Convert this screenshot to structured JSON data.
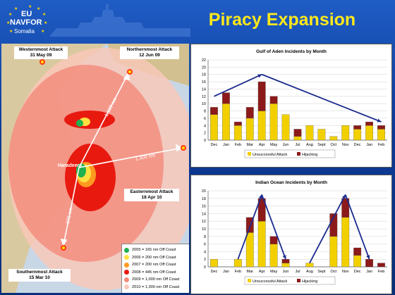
{
  "logo": {
    "line1": "EU",
    "line2": "NAVFOR",
    "line3": "Somalia"
  },
  "slide_title": "Piracy Expansion",
  "map": {
    "attacks": [
      {
        "name": "Westernmost Attack",
        "date": "31 May 09"
      },
      {
        "name": "Northernmost Attack",
        "date": "12 Jun 09"
      },
      {
        "name": "Easternmost Attack",
        "date": "18 Apr 10"
      },
      {
        "name": "Southernmost Attack",
        "date": "15 Mar 10"
      }
    ],
    "base": "Haradeere",
    "distances": [
      "1,100 nm",
      "1,300 nm",
      "975 nm"
    ],
    "legend": [
      {
        "label": "2005 = 165 nm Off Coast",
        "color": "#20b050"
      },
      {
        "label": "2006 = 200 nm Off Coast",
        "color": "#ffe040"
      },
      {
        "label": "2007 = 200 nm Off Coast",
        "color": "#ff9a20"
      },
      {
        "label": "2008 = 445 nm Off Coast",
        "color": "#e81a10"
      },
      {
        "label": "2009 = 1,000 nm Off Coast",
        "color": "#f48a7a"
      },
      {
        "label": "2010 = 1,300 nm Off Coast",
        "color": "#f8c8b8"
      }
    ]
  },
  "chart_data": [
    {
      "type": "bar",
      "title": "Gulf of Aden Incidents by Month",
      "categories": [
        "Dec",
        "Jan",
        "Feb",
        "Mar",
        "Apr",
        "May",
        "Jun",
        "Jul",
        "Aug",
        "Sept",
        "Oct",
        "Nov",
        "Dec",
        "Jan",
        "Feb"
      ],
      "series": [
        {
          "name": "Unsuccessful Attack",
          "color": "#f2d000",
          "values": [
            7,
            10,
            4,
            6,
            8,
            10,
            7,
            1,
            4,
            3,
            1,
            4,
            3,
            4,
            3
          ]
        },
        {
          "name": "Hijacking",
          "color": "#8c1a1a",
          "values": [
            2,
            3,
            1,
            3,
            8,
            2,
            0,
            2,
            0,
            0,
            0,
            0,
            1,
            1,
            1
          ]
        }
      ],
      "ylim": [
        0,
        22
      ],
      "yticks": [
        0,
        2,
        4,
        6,
        8,
        10,
        12,
        14,
        16,
        18,
        20,
        22
      ],
      "stacked": true,
      "legend": "bottom"
    },
    {
      "type": "bar",
      "title": "Indian Ocean Incidents by Month",
      "categories": [
        "Dec",
        "Jan",
        "Feb",
        "Mar",
        "Apr",
        "May",
        "Jun",
        "Jul",
        "Aug",
        "Sept",
        "Oct",
        "Nov",
        "Dec",
        "Jan",
        "Feb"
      ],
      "series": [
        {
          "name": "Unsuccessful Attack",
          "color": "#f2d000",
          "values": [
            2,
            0,
            2,
            9,
            12,
            6,
            1,
            0,
            1,
            0,
            8,
            13,
            3,
            0,
            0
          ]
        },
        {
          "name": "Hijacking",
          "color": "#8c1a1a",
          "values": [
            0,
            0,
            0,
            4,
            6,
            2,
            1,
            0,
            0,
            0,
            6,
            5,
            2,
            2,
            1
          ]
        }
      ],
      "ylim": [
        0,
        20
      ],
      "yticks": [
        0,
        2,
        4,
        6,
        8,
        10,
        12,
        14,
        16,
        18,
        20
      ],
      "stacked": true,
      "legend": "bottom"
    }
  ]
}
